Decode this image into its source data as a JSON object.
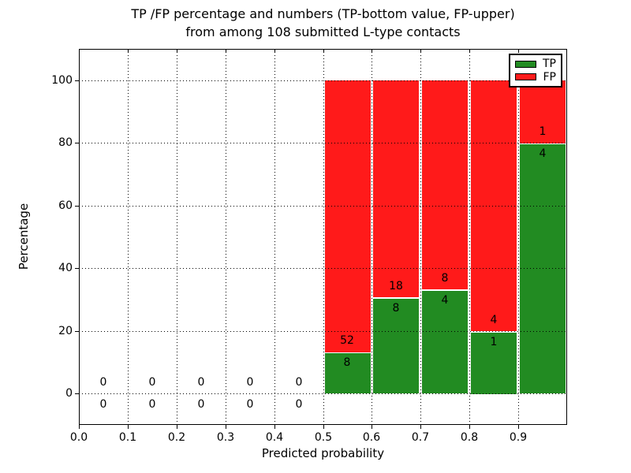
{
  "figure": {
    "title_line1": "TP /FP percentage and numbers (TP-bottom value, FP-upper)",
    "title_line2": "from among 108 submitted L-type contacts"
  },
  "chart_data": {
    "type": "bar",
    "stacked_percent": true,
    "title": "TP /FP percentage and numbers (TP-bottom value, FP-upper) from among 108 submitted L-type contacts",
    "xlabel": "Predicted probability",
    "ylabel": "Percentage",
    "xlim": [
      0.0,
      1.0
    ],
    "ylim": [
      -10,
      110
    ],
    "x_tick_labels": [
      "0.0",
      "0.1",
      "0.2",
      "0.3",
      "0.4",
      "0.5",
      "0.6",
      "0.7",
      "0.8",
      "0.9"
    ],
    "y_tick_values": [
      0,
      20,
      40,
      60,
      80,
      100
    ],
    "grid": "dotted black, drawn over bars",
    "legend_position": "upper right",
    "total_contacts": 108,
    "legend": [
      {
        "label": "TP",
        "color": "#228b22"
      },
      {
        "label": "FP",
        "color": "#ff1a1a"
      }
    ],
    "bins": [
      {
        "x_range": [
          0.0,
          0.1
        ],
        "tp_count": 0,
        "fp_count": 0,
        "tp_percent": 0
      },
      {
        "x_range": [
          0.1,
          0.2
        ],
        "tp_count": 0,
        "fp_count": 0,
        "tp_percent": 0
      },
      {
        "x_range": [
          0.2,
          0.3
        ],
        "tp_count": 0,
        "fp_count": 0,
        "tp_percent": 0
      },
      {
        "x_range": [
          0.3,
          0.4
        ],
        "tp_count": 0,
        "fp_count": 0,
        "tp_percent": 0
      },
      {
        "x_range": [
          0.4,
          0.5
        ],
        "tp_count": 0,
        "fp_count": 0,
        "tp_percent": 0
      },
      {
        "x_range": [
          0.5,
          0.6
        ],
        "tp_count": 8,
        "fp_count": 52,
        "tp_percent": 13.33
      },
      {
        "x_range": [
          0.6,
          0.7
        ],
        "tp_count": 8,
        "fp_count": 18,
        "tp_percent": 30.77
      },
      {
        "x_range": [
          0.7,
          0.8
        ],
        "tp_count": 4,
        "fp_count": 8,
        "tp_percent": 33.33
      },
      {
        "x_range": [
          0.8,
          0.9
        ],
        "tp_count": 1,
        "fp_count": 4,
        "tp_percent": 20.0
      },
      {
        "x_range": [
          0.9,
          1.0
        ],
        "tp_count": 4,
        "fp_count": 1,
        "tp_percent": 80.0
      }
    ]
  },
  "colors": {
    "tp_green": "#228b22",
    "fp_red": "#ff1a1a",
    "grid": "#000000",
    "background": "#ffffff"
  }
}
